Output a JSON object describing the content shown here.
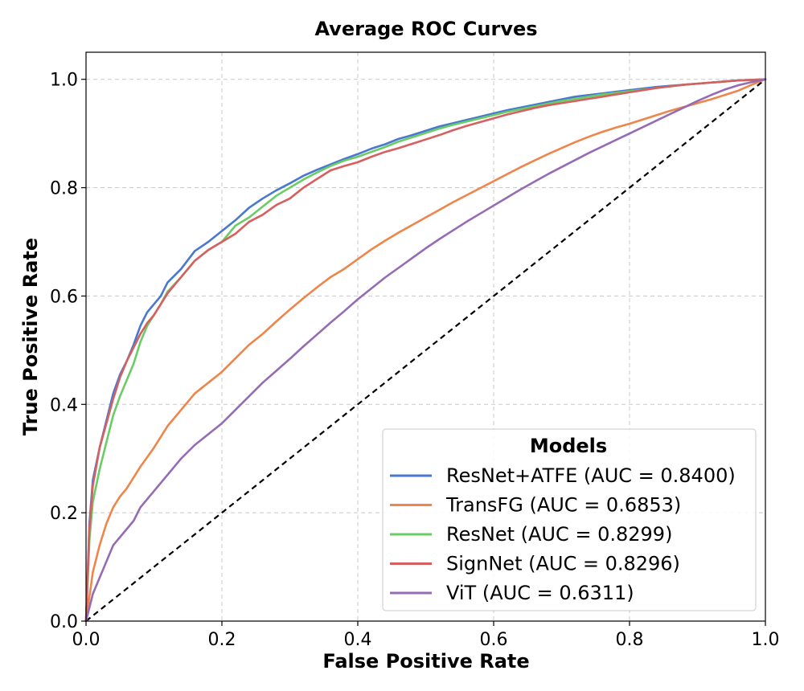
{
  "chart_data": {
    "type": "line",
    "title": "Average ROC Curves",
    "xlabel": "False Positive Rate",
    "ylabel": "True Positive Rate",
    "xlim": [
      0.0,
      1.0
    ],
    "ylim": [
      0.0,
      1.05
    ],
    "xticks": [
      "0.0",
      "0.2",
      "0.4",
      "0.6",
      "0.8",
      "1.0"
    ],
    "yticks": [
      "0.0",
      "0.2",
      "0.4",
      "0.6",
      "0.8",
      "1.0"
    ],
    "grid": true,
    "legend": {
      "title": "Models",
      "location": "lower-right"
    },
    "series": [
      {
        "name": "ResNet+ATFE (AUC = 0.8400)",
        "color": "#4878d0",
        "x": [
          0,
          0.005,
          0.01,
          0.02,
          0.03,
          0.04,
          0.05,
          0.06,
          0.07,
          0.08,
          0.09,
          0.1,
          0.11,
          0.12,
          0.14,
          0.16,
          0.18,
          0.2,
          0.22,
          0.24,
          0.26,
          0.28,
          0.3,
          0.32,
          0.34,
          0.36,
          0.38,
          0.4,
          0.42,
          0.44,
          0.46,
          0.48,
          0.5,
          0.52,
          0.54,
          0.56,
          0.58,
          0.6,
          0.62,
          0.64,
          0.66,
          0.68,
          0.7,
          0.72,
          0.74,
          0.76,
          0.78,
          0.8,
          0.82,
          0.84,
          0.86,
          0.88,
          0.9,
          0.92,
          0.94,
          0.96,
          0.98,
          1.0
        ],
        "y": [
          0,
          0.18,
          0.26,
          0.32,
          0.37,
          0.42,
          0.455,
          0.48,
          0.51,
          0.545,
          0.57,
          0.585,
          0.6,
          0.625,
          0.65,
          0.683,
          0.7,
          0.72,
          0.74,
          0.763,
          0.78,
          0.795,
          0.808,
          0.822,
          0.833,
          0.843,
          0.853,
          0.862,
          0.872,
          0.88,
          0.89,
          0.897,
          0.905,
          0.913,
          0.919,
          0.925,
          0.931,
          0.937,
          0.943,
          0.948,
          0.953,
          0.958,
          0.963,
          0.968,
          0.971,
          0.974,
          0.977,
          0.98,
          0.983,
          0.986,
          0.988,
          0.99,
          0.992,
          0.994,
          0.996,
          0.998,
          0.999,
          1.0
        ]
      },
      {
        "name": "TransFG (AUC = 0.6853)",
        "color": "#ee854a",
        "x": [
          0,
          0.01,
          0.02,
          0.03,
          0.04,
          0.05,
          0.06,
          0.07,
          0.08,
          0.1,
          0.12,
          0.14,
          0.16,
          0.18,
          0.2,
          0.22,
          0.24,
          0.26,
          0.28,
          0.3,
          0.32,
          0.34,
          0.36,
          0.38,
          0.4,
          0.42,
          0.44,
          0.46,
          0.48,
          0.5,
          0.52,
          0.54,
          0.56,
          0.58,
          0.6,
          0.62,
          0.64,
          0.66,
          0.68,
          0.7,
          0.72,
          0.74,
          0.76,
          0.78,
          0.8,
          0.82,
          0.84,
          0.86,
          0.88,
          0.9,
          0.92,
          0.94,
          0.96,
          0.98,
          1.0
        ],
        "y": [
          0,
          0.09,
          0.14,
          0.18,
          0.21,
          0.23,
          0.245,
          0.265,
          0.285,
          0.32,
          0.36,
          0.39,
          0.42,
          0.44,
          0.46,
          0.485,
          0.51,
          0.53,
          0.553,
          0.575,
          0.596,
          0.616,
          0.635,
          0.65,
          0.668,
          0.686,
          0.702,
          0.717,
          0.731,
          0.745,
          0.759,
          0.773,
          0.786,
          0.799,
          0.812,
          0.825,
          0.838,
          0.85,
          0.862,
          0.873,
          0.884,
          0.894,
          0.903,
          0.911,
          0.918,
          0.926,
          0.934,
          0.942,
          0.949,
          0.956,
          0.963,
          0.971,
          0.979,
          0.99,
          1.0
        ]
      },
      {
        "name": "ResNet (AUC = 0.8299)",
        "color": "#6acc64",
        "x": [
          0,
          0.005,
          0.01,
          0.02,
          0.03,
          0.04,
          0.05,
          0.06,
          0.07,
          0.08,
          0.09,
          0.1,
          0.11,
          0.12,
          0.14,
          0.16,
          0.18,
          0.2,
          0.21,
          0.22,
          0.24,
          0.26,
          0.28,
          0.3,
          0.32,
          0.34,
          0.36,
          0.38,
          0.4,
          0.42,
          0.44,
          0.46,
          0.48,
          0.5,
          0.52,
          0.54,
          0.56,
          0.58,
          0.6,
          0.62,
          0.64,
          0.66,
          0.68,
          0.7,
          0.72,
          0.74,
          0.76,
          0.78,
          0.8,
          0.82,
          0.84,
          0.86,
          0.88,
          0.9,
          0.92,
          0.94,
          0.96,
          0.98,
          1.0
        ],
        "y": [
          0,
          0.15,
          0.22,
          0.28,
          0.33,
          0.38,
          0.415,
          0.445,
          0.475,
          0.515,
          0.545,
          0.565,
          0.585,
          0.608,
          0.635,
          0.665,
          0.685,
          0.7,
          0.715,
          0.73,
          0.745,
          0.765,
          0.785,
          0.8,
          0.815,
          0.828,
          0.84,
          0.85,
          0.857,
          0.866,
          0.875,
          0.885,
          0.893,
          0.901,
          0.909,
          0.916,
          0.922,
          0.928,
          0.934,
          0.94,
          0.945,
          0.95,
          0.955,
          0.96,
          0.964,
          0.968,
          0.972,
          0.975,
          0.978,
          0.981,
          0.984,
          0.987,
          0.99,
          0.992,
          0.994,
          0.996,
          0.998,
          0.999,
          1.0
        ]
      },
      {
        "name": "SignNet (AUC = 0.8296)",
        "color": "#d65f5f",
        "x": [
          0,
          0.005,
          0.01,
          0.02,
          0.03,
          0.04,
          0.05,
          0.06,
          0.07,
          0.08,
          0.09,
          0.1,
          0.11,
          0.12,
          0.14,
          0.16,
          0.18,
          0.2,
          0.22,
          0.24,
          0.26,
          0.28,
          0.3,
          0.32,
          0.34,
          0.36,
          0.38,
          0.4,
          0.42,
          0.44,
          0.46,
          0.48,
          0.5,
          0.52,
          0.54,
          0.56,
          0.58,
          0.6,
          0.62,
          0.64,
          0.66,
          0.68,
          0.7,
          0.72,
          0.74,
          0.76,
          0.78,
          0.8,
          0.82,
          0.84,
          0.86,
          0.88,
          0.9,
          0.92,
          0.94,
          0.96,
          0.98,
          1.0
        ],
        "y": [
          0,
          0.17,
          0.25,
          0.32,
          0.365,
          0.41,
          0.45,
          0.48,
          0.505,
          0.53,
          0.55,
          0.565,
          0.585,
          0.605,
          0.635,
          0.665,
          0.685,
          0.7,
          0.715,
          0.737,
          0.75,
          0.768,
          0.78,
          0.8,
          0.816,
          0.832,
          0.84,
          0.847,
          0.857,
          0.866,
          0.873,
          0.881,
          0.889,
          0.897,
          0.906,
          0.914,
          0.921,
          0.928,
          0.935,
          0.941,
          0.947,
          0.952,
          0.956,
          0.96,
          0.964,
          0.968,
          0.972,
          0.976,
          0.98,
          0.984,
          0.987,
          0.99,
          0.992,
          0.994,
          0.996,
          0.998,
          0.999,
          1.0
        ]
      },
      {
        "name": "ViT (AUC = 0.6311)",
        "color": "#956cb4",
        "x": [
          0,
          0.01,
          0.02,
          0.03,
          0.04,
          0.05,
          0.06,
          0.07,
          0.08,
          0.1,
          0.12,
          0.14,
          0.16,
          0.18,
          0.2,
          0.22,
          0.24,
          0.26,
          0.28,
          0.3,
          0.32,
          0.34,
          0.36,
          0.38,
          0.4,
          0.42,
          0.44,
          0.46,
          0.48,
          0.5,
          0.52,
          0.54,
          0.56,
          0.58,
          0.6,
          0.62,
          0.64,
          0.66,
          0.68,
          0.7,
          0.72,
          0.74,
          0.76,
          0.78,
          0.8,
          0.82,
          0.84,
          0.86,
          0.88,
          0.9,
          0.92,
          0.94,
          0.96,
          0.98,
          1.0
        ],
        "y": [
          0,
          0.05,
          0.08,
          0.11,
          0.14,
          0.155,
          0.17,
          0.185,
          0.21,
          0.24,
          0.27,
          0.3,
          0.325,
          0.345,
          0.365,
          0.39,
          0.415,
          0.44,
          0.462,
          0.484,
          0.507,
          0.529,
          0.551,
          0.572,
          0.594,
          0.614,
          0.634,
          0.652,
          0.67,
          0.688,
          0.705,
          0.721,
          0.737,
          0.752,
          0.767,
          0.782,
          0.797,
          0.811,
          0.825,
          0.838,
          0.851,
          0.864,
          0.876,
          0.888,
          0.9,
          0.912,
          0.924,
          0.936,
          0.948,
          0.96,
          0.971,
          0.981,
          0.989,
          0.995,
          1.0
        ]
      }
    ],
    "baseline": {
      "x": [
        0,
        1
      ],
      "y": [
        0,
        1
      ],
      "color": "#000000"
    }
  }
}
